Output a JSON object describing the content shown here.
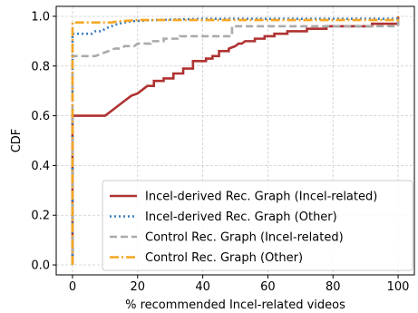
{
  "chart_data": {
    "type": "line",
    "xlabel": "% recommended Incel-related videos",
    "ylabel": "CDF",
    "xlim": [
      -5,
      105
    ],
    "ylim": [
      -0.04,
      1.04
    ],
    "x_ticks": [
      0,
      20,
      40,
      60,
      80,
      100
    ],
    "y_ticks": [
      0.0,
      0.2,
      0.4,
      0.6,
      0.8,
      1.0
    ],
    "x_tick_labels": [
      "0",
      "20",
      "40",
      "60",
      "80",
      "100"
    ],
    "y_tick_labels": [
      "0.0",
      "0.2",
      "0.4",
      "0.6",
      "0.8",
      "1.0"
    ],
    "grid": true,
    "legend_position": "bottom-right",
    "series": [
      {
        "name": "Incel-derived Rec. Graph (Incel-related)",
        "color": "#b03232",
        "dash": "solid",
        "points": [
          [
            0,
            0
          ],
          [
            0,
            0.6
          ],
          [
            10,
            0.6
          ],
          [
            11,
            0.61
          ],
          [
            12,
            0.62
          ],
          [
            13,
            0.63
          ],
          [
            14,
            0.64
          ],
          [
            15,
            0.65
          ],
          [
            16,
            0.66
          ],
          [
            17,
            0.67
          ],
          [
            18,
            0.68
          ],
          [
            20,
            0.69
          ],
          [
            21,
            0.7
          ],
          [
            22,
            0.71
          ],
          [
            23,
            0.72
          ],
          [
            25,
            0.72
          ],
          [
            25,
            0.74
          ],
          [
            28,
            0.74
          ],
          [
            28,
            0.75
          ],
          [
            31,
            0.75
          ],
          [
            31,
            0.77
          ],
          [
            34,
            0.77
          ],
          [
            34,
            0.79
          ],
          [
            37,
            0.79
          ],
          [
            37,
            0.82
          ],
          [
            41,
            0.82
          ],
          [
            41,
            0.83
          ],
          [
            43,
            0.83
          ],
          [
            43,
            0.84
          ],
          [
            45,
            0.84
          ],
          [
            45,
            0.86
          ],
          [
            48,
            0.86
          ],
          [
            48,
            0.87
          ],
          [
            50,
            0.88
          ],
          [
            51,
            0.89
          ],
          [
            52,
            0.89
          ],
          [
            53,
            0.9
          ],
          [
            56,
            0.9
          ],
          [
            56,
            0.91
          ],
          [
            59,
            0.91
          ],
          [
            59,
            0.92
          ],
          [
            62,
            0.92
          ],
          [
            62,
            0.93
          ],
          [
            66,
            0.93
          ],
          [
            66,
            0.94
          ],
          [
            72,
            0.94
          ],
          [
            72,
            0.95
          ],
          [
            78,
            0.95
          ],
          [
            78,
            0.96
          ],
          [
            92,
            0.96
          ],
          [
            92,
            0.97
          ],
          [
            100,
            0.97
          ],
          [
            100,
            1.0
          ]
        ]
      },
      {
        "name": "Incel-derived Rec. Graph (Other)",
        "color": "#3a7fc0",
        "dash": "dotted",
        "points": [
          [
            0,
            0
          ],
          [
            0,
            0.93
          ],
          [
            6,
            0.93
          ],
          [
            7,
            0.94
          ],
          [
            9,
            0.94
          ],
          [
            10,
            0.95
          ],
          [
            12,
            0.96
          ],
          [
            14,
            0.97
          ],
          [
            18,
            0.98
          ],
          [
            25,
            0.985
          ],
          [
            40,
            0.99
          ],
          [
            100,
            0.99
          ],
          [
            100,
            1.0
          ]
        ]
      },
      {
        "name": "Control Rec. Graph (Incel-related)",
        "color": "#aaaaaa",
        "dash": "dashed",
        "points": [
          [
            0,
            0
          ],
          [
            0,
            0.84
          ],
          [
            7,
            0.84
          ],
          [
            9,
            0.85
          ],
          [
            11,
            0.86
          ],
          [
            13,
            0.87
          ],
          [
            15,
            0.87
          ],
          [
            16,
            0.88
          ],
          [
            19,
            0.88
          ],
          [
            20,
            0.89
          ],
          [
            24,
            0.89
          ],
          [
            24,
            0.9
          ],
          [
            28,
            0.9
          ],
          [
            28,
            0.91
          ],
          [
            33,
            0.91
          ],
          [
            33,
            0.92
          ],
          [
            49,
            0.92
          ],
          [
            49,
            0.96
          ],
          [
            100,
            0.96
          ],
          [
            100,
            1.0
          ]
        ]
      },
      {
        "name": "Control Rec. Graph (Other)",
        "color": "#f5a623",
        "dash": "dashdot",
        "points": [
          [
            0,
            0
          ],
          [
            0,
            0.975
          ],
          [
            12,
            0.975
          ],
          [
            14,
            0.98
          ],
          [
            20,
            0.985
          ],
          [
            100,
            0.985
          ],
          [
            100,
            1.0
          ]
        ]
      }
    ]
  }
}
